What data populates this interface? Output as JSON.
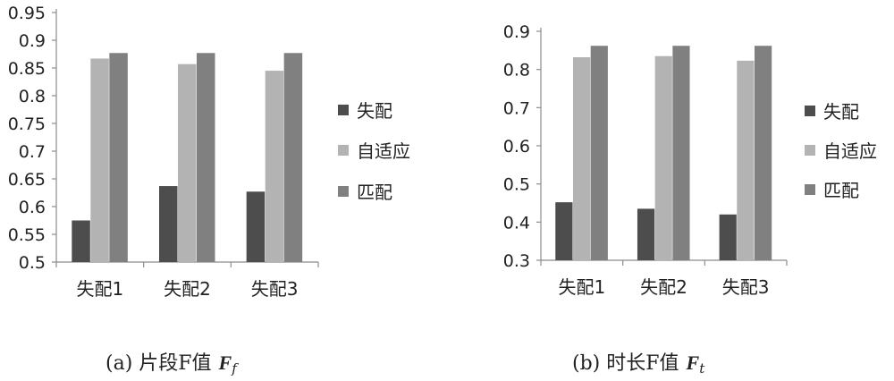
{
  "colors": {
    "mismatch": "#4d4d4d",
    "adaptive": "#b3b3b3",
    "match": "#808080",
    "axis": "#8c8c8c"
  },
  "chart_data": [
    {
      "type": "bar",
      "categories": [
        "失配1",
        "失配2",
        "失配3"
      ],
      "series": [
        {
          "name": "失配",
          "values": [
            0.575,
            0.637,
            0.627
          ]
        },
        {
          "name": "自适应",
          "values": [
            0.867,
            0.857,
            0.845
          ]
        },
        {
          "name": "匹配",
          "values": [
            0.877,
            0.877,
            0.877
          ]
        }
      ],
      "ylim": [
        0.5,
        0.95
      ],
      "yticks": [
        "0.5",
        "0.55",
        "0.6",
        "0.65",
        "0.7",
        "0.75",
        "0.8",
        "0.85",
        "0.9",
        "0.95"
      ],
      "legend_position": "right",
      "grid": false,
      "caption": {
        "prefix": "(a) 片段F值",
        "symbol": "F",
        "subscript": "f"
      }
    },
    {
      "type": "bar",
      "categories": [
        "失配1",
        "失配2",
        "失配3"
      ],
      "series": [
        {
          "name": "失配",
          "values": [
            0.452,
            0.435,
            0.42
          ]
        },
        {
          "name": "自适应",
          "values": [
            0.832,
            0.835,
            0.823
          ]
        },
        {
          "name": "匹配",
          "values": [
            0.862,
            0.862,
            0.862
          ]
        }
      ],
      "ylim": [
        0.3,
        0.9
      ],
      "yticks": [
        "0.3",
        "0.4",
        "0.5",
        "0.6",
        "0.7",
        "0.8",
        "0.9"
      ],
      "legend_position": "right",
      "grid": false,
      "caption": {
        "prefix": "(b) 时长F值",
        "symbol": "F",
        "subscript": "t"
      }
    }
  ]
}
